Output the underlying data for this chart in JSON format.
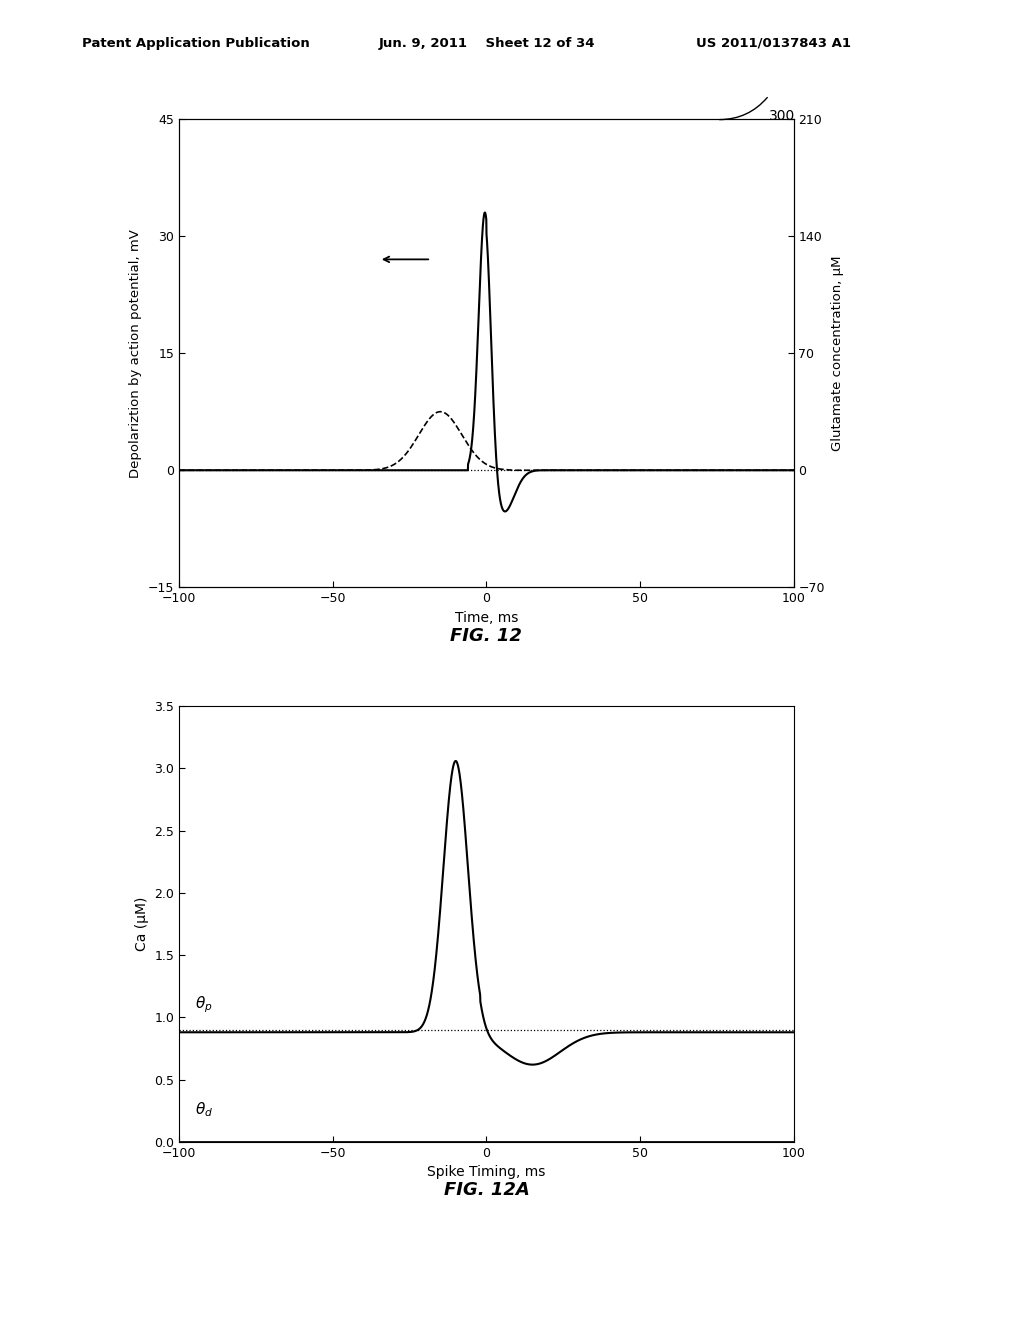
{
  "fig12": {
    "xlim": [
      -100,
      100
    ],
    "ylim_left": [
      -15,
      45
    ],
    "ylim_right": [
      -70,
      210
    ],
    "yticks_left": [
      -15,
      0,
      15,
      30,
      45
    ],
    "yticks_right": [
      -70,
      0,
      70,
      140,
      210
    ],
    "xlabel": "Time, ms",
    "ylabel_left": "Depolariztion by action potential, mV",
    "ylabel_right": "Glutamate concentration, μM",
    "xticks": [
      -100,
      -50,
      0,
      50,
      100
    ],
    "fig_label": "FIG. 12"
  },
  "fig12a": {
    "xlim": [
      -100,
      100
    ],
    "ylim": [
      0,
      3.5
    ],
    "yticks": [
      0,
      0.5,
      1.0,
      1.5,
      2.0,
      2.5,
      3.0,
      3.5
    ],
    "xlabel": "Spike Timing, ms",
    "ylabel": "Ca (μM)",
    "xticks": [
      -100,
      -50,
      0,
      50,
      100
    ],
    "theta_p": 0.9,
    "theta_d": 0.0,
    "fig_label": "FIG. 12A"
  },
  "header_left": "Patent Application Publication",
  "header_mid": "Jun. 9, 2011    Sheet 12 of 34",
  "header_right": "US 2011/0137843 A1",
  "bg_color": "#ffffff",
  "line_color": "#000000"
}
